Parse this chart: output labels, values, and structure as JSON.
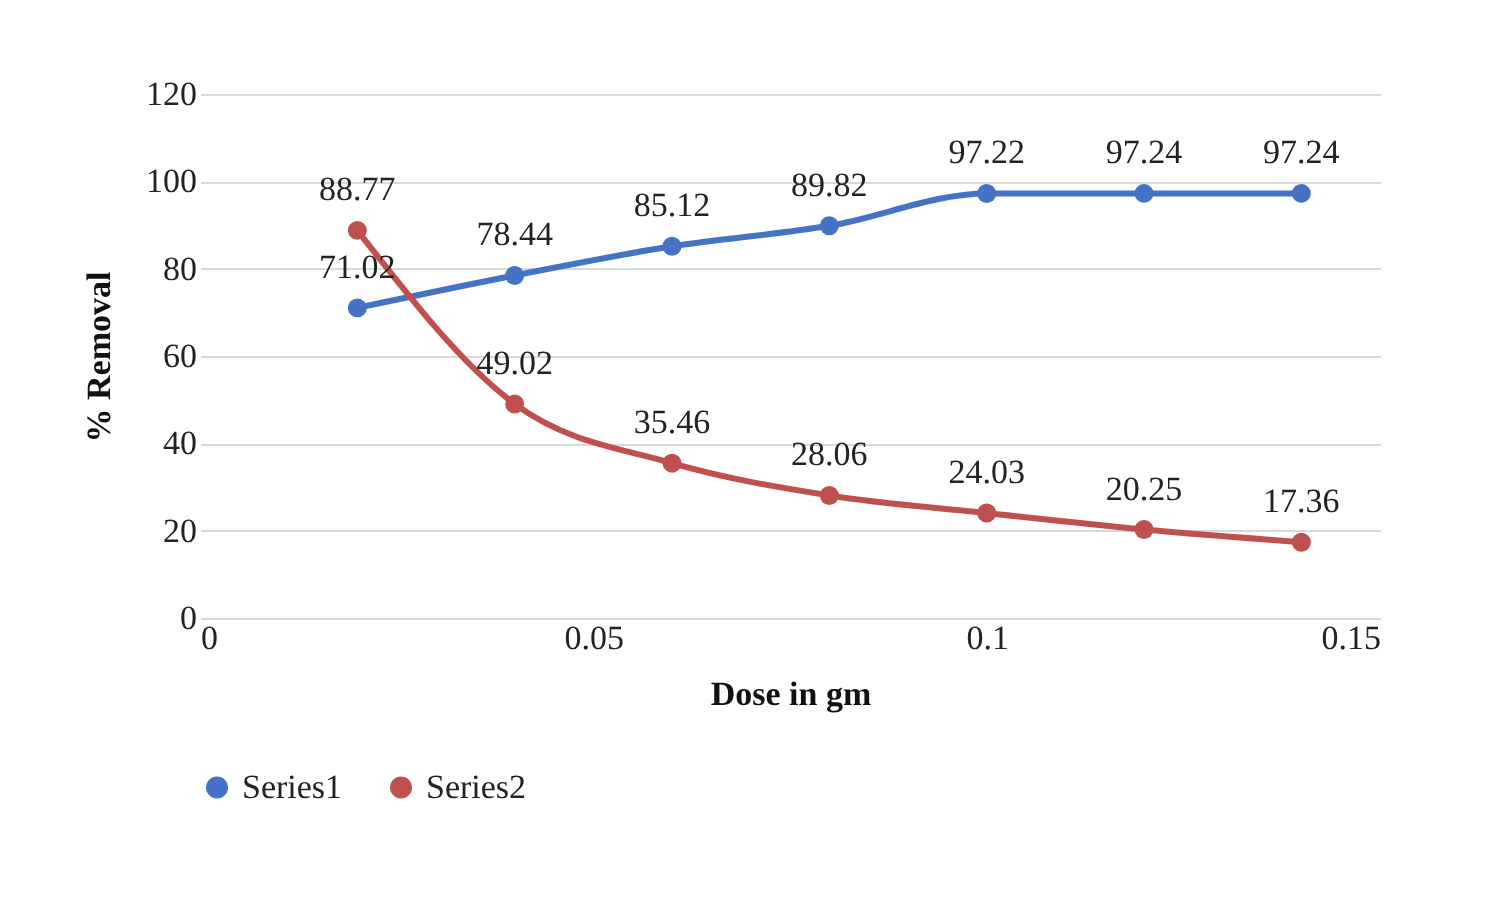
{
  "chart_data": {
    "type": "line",
    "xlabel": "Dose in gm",
    "ylabel": "% Removal",
    "x": [
      0.02,
      0.04,
      0.06,
      0.08,
      0.1,
      0.12,
      0.14
    ],
    "series": [
      {
        "name": "Series1",
        "color": "#4472c4",
        "values": [
          71.02,
          78.44,
          85.12,
          89.82,
          97.22,
          97.24,
          97.24
        ]
      },
      {
        "name": "Series2",
        "color": "#c0504d",
        "values": [
          88.77,
          49.02,
          35.46,
          28.06,
          24.03,
          20.25,
          17.36
        ]
      }
    ],
    "xlim": [
      0,
      0.15
    ],
    "xticks": [
      0,
      0.05,
      0.1,
      0.15
    ],
    "ylim": [
      0,
      120
    ],
    "yticks": [
      0,
      20,
      40,
      60,
      80,
      100,
      120
    ],
    "grid": "y",
    "legend": "bottom",
    "marker": "circle",
    "line_style": "solid",
    "data_labels": true
  }
}
